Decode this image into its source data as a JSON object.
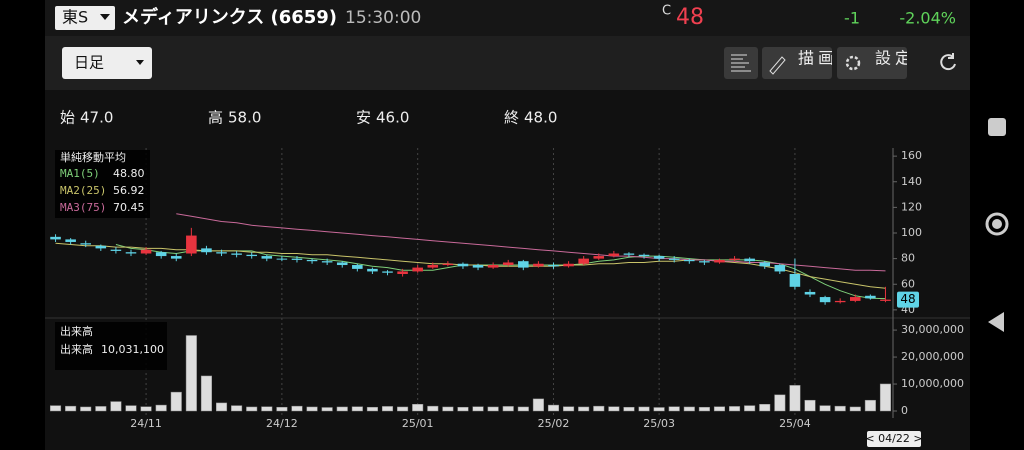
{
  "header": {
    "market": "東S",
    "name": "メディアリンクス (6659)",
    "time": "15:30:00",
    "price_flag": "C",
    "price": "48",
    "change": "-1",
    "change_pct": "-2.04%"
  },
  "toolbar": {
    "period": "日足",
    "draw_button": "描画",
    "settings_button": "設定"
  },
  "ohlc_summary": [
    {
      "label": "始",
      "value": "47.0"
    },
    {
      "label": "高",
      "value": "58.0"
    },
    {
      "label": "安",
      "value": "46.0"
    },
    {
      "label": "終",
      "value": "48.0"
    }
  ],
  "chart_data": {
    "type": "candlestick",
    "legend_title": "単純移動平均",
    "categories": [
      null,
      null,
      null,
      null,
      null,
      null,
      "24/11",
      null,
      null,
      null,
      null,
      null,
      null,
      null,
      null,
      "24/12",
      null,
      null,
      null,
      null,
      null,
      null,
      null,
      null,
      "25/01",
      null,
      null,
      null,
      null,
      null,
      null,
      null,
      null,
      "25/02",
      null,
      null,
      null,
      null,
      null,
      null,
      "25/03",
      null,
      null,
      null,
      null,
      null,
      null,
      null,
      null,
      "25/04",
      null,
      null,
      null,
      null,
      null,
      null
    ],
    "cursor_label": "< 04/22 >",
    "up_color": "#e8343f",
    "down_color": "#5fd3e6",
    "open": [
      97,
      95,
      92,
      90,
      87,
      85,
      84,
      85,
      82,
      84,
      88,
      85,
      84,
      83,
      82,
      80,
      80,
      79,
      78,
      77,
      75,
      72,
      70,
      68,
      70,
      73,
      75,
      76,
      75,
      73,
      75,
      78,
      74,
      75,
      74,
      76,
      80,
      82,
      84,
      83,
      82,
      80,
      79,
      78,
      77,
      79,
      80,
      77,
      75,
      68,
      54,
      50,
      46,
      47,
      51,
      47
    ],
    "high": [
      99,
      96,
      94,
      91,
      89,
      87,
      89,
      86,
      84,
      104,
      90,
      87,
      86,
      85,
      83,
      82,
      82,
      80,
      80,
      78,
      76,
      73,
      71,
      72,
      75,
      77,
      78,
      77,
      76,
      77,
      79,
      79,
      78,
      77,
      78,
      82,
      84,
      86,
      85,
      84,
      83,
      82,
      80,
      79,
      80,
      82,
      81,
      78,
      76,
      80,
      56,
      51,
      49,
      52,
      52,
      58
    ],
    "low": [
      93,
      91,
      89,
      86,
      84,
      82,
      83,
      80,
      78,
      82,
      83,
      82,
      81,
      80,
      78,
      78,
      77,
      76,
      75,
      73,
      70,
      68,
      67,
      66,
      69,
      72,
      74,
      72,
      71,
      72,
      74,
      71,
      73,
      72,
      73,
      75,
      79,
      81,
      81,
      80,
      78,
      77,
      76,
      75,
      76,
      78,
      76,
      72,
      68,
      56,
      50,
      44,
      45,
      46,
      48,
      46
    ],
    "close": [
      95,
      93,
      91,
      88,
      86,
      84,
      87,
      82,
      80,
      98,
      85,
      84,
      83,
      82,
      80,
      80,
      79,
      78,
      77,
      75,
      72,
      70,
      69,
      70,
      73,
      75,
      76,
      74,
      73,
      75,
      77,
      73,
      76,
      74,
      76,
      80,
      82,
      84,
      83,
      82,
      80,
      79,
      78,
      77,
      79,
      80,
      78,
      74,
      70,
      58,
      52,
      46,
      47,
      50,
      49,
      48
    ],
    "series": [
      {
        "name": "MA1(5)",
        "color": "#7fd07a",
        "last_label": "48.80",
        "values": [
          null,
          null,
          null,
          null,
          91,
          88,
          87,
          85,
          84,
          86,
          86,
          86,
          86,
          86,
          83,
          82,
          81,
          80,
          79,
          78,
          76,
          74,
          73,
          71,
          71,
          71,
          73,
          75,
          75,
          75,
          75,
          75,
          75,
          75,
          75,
          76,
          78,
          79,
          81,
          82,
          82,
          81,
          80,
          79,
          79,
          79,
          79,
          78,
          76,
          72,
          66,
          60,
          55,
          51,
          49,
          48.8
        ]
      },
      {
        "name": "MA2(25)",
        "color": "#c9c46a",
        "last_label": "56.92",
        "values": [
          92,
          91,
          90,
          90,
          89,
          89,
          88,
          88,
          87,
          87,
          86,
          86,
          86,
          85,
          85,
          84,
          84,
          83,
          83,
          82,
          81,
          80,
          79,
          78,
          77,
          76,
          76,
          75,
          75,
          74,
          74,
          74,
          74,
          74,
          75,
          75,
          76,
          76,
          77,
          77,
          78,
          78,
          79,
          79,
          78,
          77,
          76,
          74,
          72,
          69,
          66,
          64,
          62,
          60,
          58,
          56.92
        ]
      },
      {
        "name": "MA3(75)",
        "color": "#c96a9a",
        "last_label": "70.45",
        "values": [
          null,
          null,
          null,
          null,
          null,
          null,
          null,
          null,
          115,
          113,
          111,
          109,
          108,
          106,
          105,
          104,
          103,
          102,
          101,
          100,
          99,
          98,
          97,
          96,
          95,
          94,
          93,
          92,
          91,
          90,
          89,
          88,
          87,
          86,
          85,
          84,
          83,
          82,
          82,
          81,
          80,
          80,
          79,
          79,
          78,
          78,
          77,
          77,
          76,
          75,
          74,
          73,
          72,
          71,
          71,
          70.45
        ]
      }
    ],
    "ylim": [
      36,
      164
    ],
    "yticks": [
      40,
      60,
      80,
      100,
      120,
      140,
      160
    ],
    "price_tag": 48,
    "volume_title": "出来高",
    "volume_name": "出来高",
    "volume_value_label": "10,031,100",
    "volume": [
      2000000,
      1800000,
      1500000,
      1700000,
      3500000,
      2000000,
      1600000,
      2200000,
      7000000,
      28000000,
      13000000,
      3000000,
      2000000,
      1500000,
      1600000,
      1400000,
      1800000,
      1500000,
      1300000,
      1500000,
      1600000,
      1400000,
      1700000,
      1500000,
      2500000,
      1800000,
      1500000,
      1400000,
      1600000,
      1500000,
      1700000,
      1500000,
      4500000,
      2200000,
      1600000,
      1500000,
      1800000,
      1600000,
      1400000,
      1500000,
      1300000,
      1600000,
      1500000,
      1400000,
      1600000,
      1700000,
      2000000,
      2500000,
      6000000,
      9500000,
      4000000,
      2000000,
      1800000,
      1500000,
      4000000,
      10031100
    ],
    "vlim": [
      0,
      33000000
    ],
    "vticks": [
      0,
      {
        "value": 10000000,
        "label": "10,000,000"
      },
      {
        "value": 20000000,
        "label": "20,000,000"
      },
      {
        "value": 30000000,
        "label": "30,000,000"
      }
    ]
  }
}
